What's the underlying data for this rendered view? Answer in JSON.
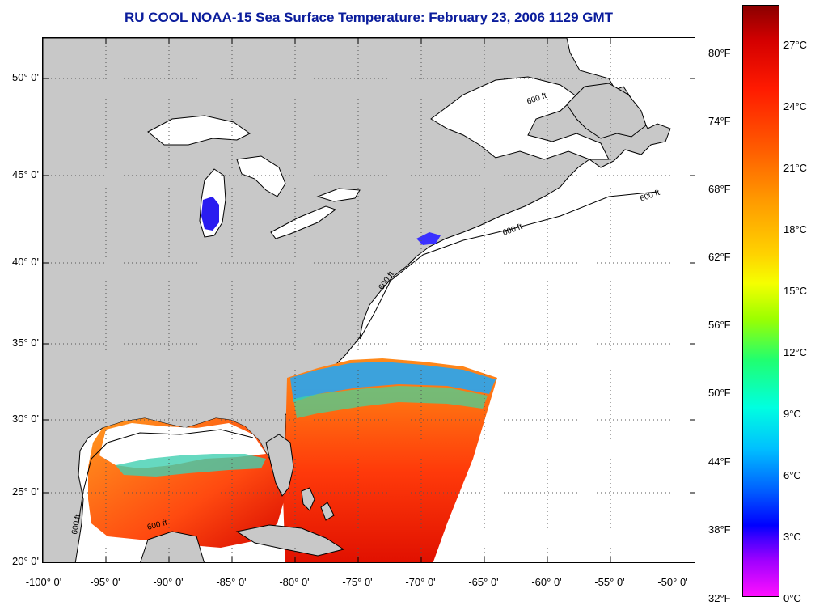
{
  "title": "RU COOL  NOAA-15  Sea Surface Temperature:  February 23, 2006 1129 GMT",
  "map": {
    "lon_range": [
      -100,
      -50
    ],
    "lat_range": [
      20,
      52.5
    ],
    "lat_ticks": [
      "50° 0'",
      "45° 0'",
      "40° 0'",
      "35° 0'",
      "30° 0'",
      "25° 0'",
      "20° 0'"
    ],
    "lon_ticks": [
      "-100° 0'",
      "-95° 0'",
      "-90° 0'",
      "-85° 0'",
      "-80° 0'",
      "-75° 0'",
      "-70° 0'",
      "-65° 0'",
      "-60° 0'",
      "-55° 0'",
      "-50° 0'"
    ],
    "contour_label": "600 ft",
    "land_color": "#c8c8c8",
    "grid": "dotted"
  },
  "colorbar": {
    "fahrenheit_labels": [
      "80°F",
      "74°F",
      "68°F",
      "62°F",
      "56°F",
      "50°F",
      "44°F",
      "38°F",
      "32°F"
    ],
    "celsius_labels": [
      "27°C",
      "24°C",
      "21°C",
      "18°C",
      "15°C",
      "12°C",
      "9°C",
      "6°C",
      "3°C",
      "0°C"
    ],
    "colors": [
      "#8b0000",
      "#ff1a00",
      "#ff9a00",
      "#f5ff00",
      "#20ff70",
      "#00ffe0",
      "#0000ff",
      "#ff10ff"
    ]
  }
}
